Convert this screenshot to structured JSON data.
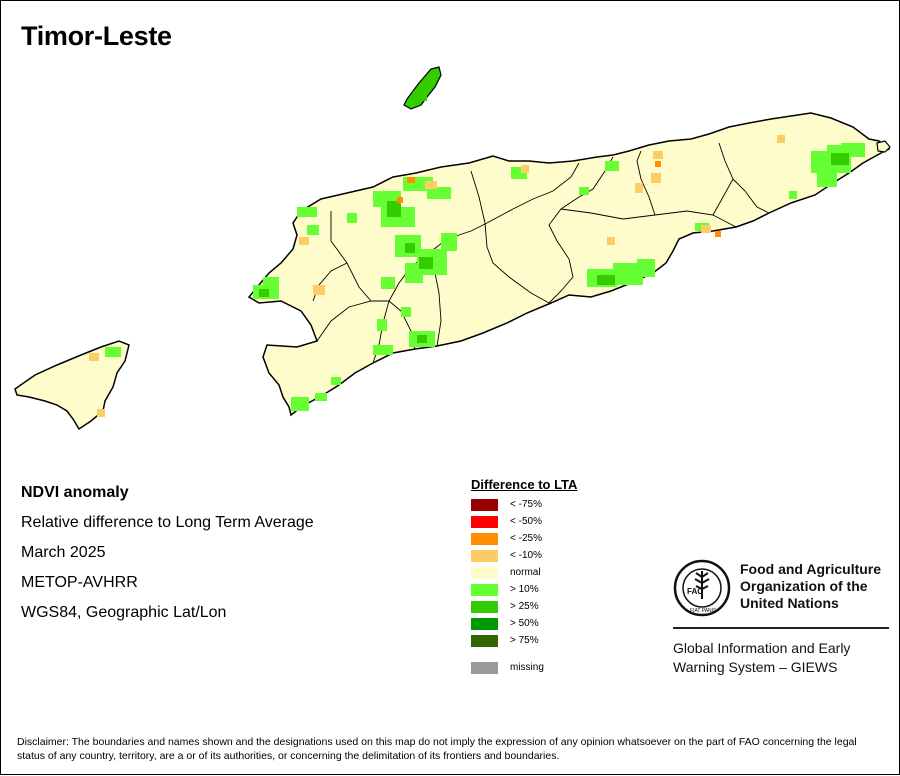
{
  "map": {
    "title": "Timor-Leste",
    "colors": {
      "border": "#000000",
      "normal": "#fefccb",
      "pos10": "#66ff33",
      "pos25": "#33cc00",
      "neg10": "#fecc66",
      "neg25": "#ff8f00"
    }
  },
  "info": {
    "product": "NDVI anomaly",
    "description": "Relative difference to Long Term Average",
    "period": "March 2025",
    "sensor": "METOP-AVHRR",
    "projection": "WGS84, Geographic Lat/Lon"
  },
  "legend": {
    "title": "Difference to LTA",
    "classes": [
      {
        "label": "< -75%",
        "color": "#990000"
      },
      {
        "label": "< -50%",
        "color": "#ff0000"
      },
      {
        "label": "< -25%",
        "color": "#ff8f00"
      },
      {
        "label": "< -10%",
        "color": "#fecc66"
      },
      {
        "label": "normal",
        "color": "#fefccb"
      },
      {
        "label": "> 10%",
        "color": "#66ff33"
      },
      {
        "label": "> 25%",
        "color": "#33cc00"
      },
      {
        "label": "> 50%",
        "color": "#009900"
      },
      {
        "label": "> 75%",
        "color": "#336600"
      },
      {
        "label": "missing",
        "color": "#999999"
      }
    ]
  },
  "logo": {
    "org_line1": "Food and Agriculture",
    "org_line2": "Organization of the",
    "org_line3": "United Nations",
    "emblem_text": "FAO",
    "motto": "FIAT PANIS",
    "giews_line1": "Global Information and Early",
    "giews_line2": "Warning System – GIEWS"
  },
  "disclaimer": "Disclaimer: The boundaries and names shown and the designations used on this map do not imply the expression of any opinion whatsoever on the part of FAO concerning the legal status of any country, territory, are a or of its authorities, or concerning the delimitation of its frontiers and boundaries."
}
